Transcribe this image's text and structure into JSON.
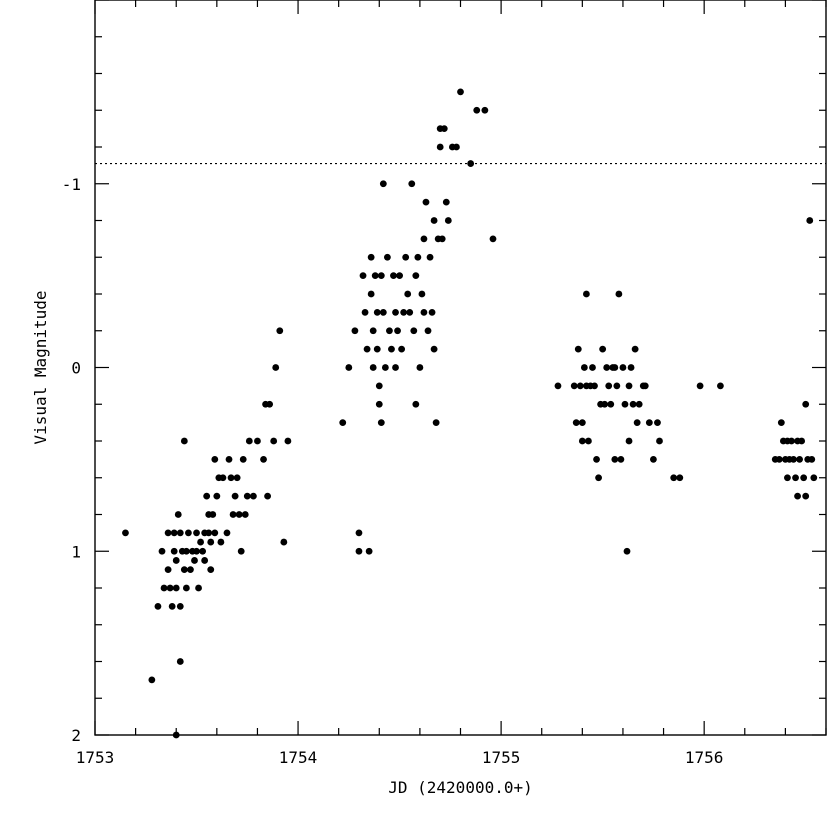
{
  "chart_data": {
    "type": "scatter",
    "title": "",
    "xlabel": "JD (2420000.0+)",
    "ylabel": "Visual Magnitude",
    "xlim": [
      1753,
      1756.6
    ],
    "ylim": [
      2,
      -2
    ],
    "y_inverted": true,
    "x_ticks": [
      1753,
      1754,
      1755,
      1756
    ],
    "x_tick_labels": [
      "1753",
      "1754",
      "1755",
      "1756"
    ],
    "y_ticks": [
      -1,
      0,
      1,
      2
    ],
    "y_tick_labels": [
      "-1",
      "0",
      "1",
      "2"
    ],
    "grid": false,
    "reference_line": {
      "y": -1.11,
      "style": "dotted"
    },
    "marker_color": "#000000",
    "points": [
      [
        1753.15,
        0.9
      ],
      [
        1753.28,
        1.7
      ],
      [
        1753.31,
        1.3
      ],
      [
        1753.33,
        1.0
      ],
      [
        1753.34,
        1.2
      ],
      [
        1753.36,
        1.1
      ],
      [
        1753.36,
        0.9
      ],
      [
        1753.37,
        1.2
      ],
      [
        1753.38,
        1.3
      ],
      [
        1753.39,
        1.0
      ],
      [
        1753.39,
        0.9
      ],
      [
        1753.4,
        2.0
      ],
      [
        1753.4,
        1.2
      ],
      [
        1753.4,
        1.05
      ],
      [
        1753.41,
        0.8
      ],
      [
        1753.42,
        1.6
      ],
      [
        1753.42,
        1.3
      ],
      [
        1753.42,
        0.9
      ],
      [
        1753.43,
        1.0
      ],
      [
        1753.44,
        0.4
      ],
      [
        1753.44,
        1.1
      ],
      [
        1753.45,
        1.2
      ],
      [
        1753.45,
        1.0
      ],
      [
        1753.46,
        0.9
      ],
      [
        1753.47,
        1.1
      ],
      [
        1753.48,
        1.0
      ],
      [
        1753.49,
        1.05
      ],
      [
        1753.5,
        1.0
      ],
      [
        1753.5,
        0.9
      ],
      [
        1753.51,
        1.2
      ],
      [
        1753.52,
        0.95
      ],
      [
        1753.53,
        1.0
      ],
      [
        1753.54,
        1.05
      ],
      [
        1753.54,
        0.9
      ],
      [
        1753.55,
        0.7
      ],
      [
        1753.56,
        0.8
      ],
      [
        1753.56,
        0.9
      ],
      [
        1753.57,
        1.1
      ],
      [
        1753.57,
        0.95
      ],
      [
        1753.58,
        0.8
      ],
      [
        1753.59,
        0.9
      ],
      [
        1753.59,
        0.5
      ],
      [
        1753.6,
        0.7
      ],
      [
        1753.61,
        0.6
      ],
      [
        1753.62,
        0.95
      ],
      [
        1753.63,
        0.6
      ],
      [
        1753.65,
        0.9
      ],
      [
        1753.66,
        0.5
      ],
      [
        1753.67,
        0.6
      ],
      [
        1753.68,
        0.8
      ],
      [
        1753.69,
        0.7
      ],
      [
        1753.7,
        0.6
      ],
      [
        1753.71,
        0.8
      ],
      [
        1753.72,
        1.0
      ],
      [
        1753.73,
        0.5
      ],
      [
        1753.74,
        0.8
      ],
      [
        1753.75,
        0.7
      ],
      [
        1753.76,
        0.4
      ],
      [
        1753.78,
        0.7
      ],
      [
        1753.8,
        0.4
      ],
      [
        1753.83,
        0.5
      ],
      [
        1753.84,
        0.2
      ],
      [
        1753.85,
        0.7
      ],
      [
        1753.86,
        0.2
      ],
      [
        1753.88,
        0.4
      ],
      [
        1753.89,
        0.0
      ],
      [
        1753.91,
        -0.2
      ],
      [
        1753.93,
        0.95
      ],
      [
        1753.95,
        0.4
      ],
      [
        1754.22,
        0.3
      ],
      [
        1754.25,
        0.0
      ],
      [
        1754.28,
        -0.2
      ],
      [
        1754.3,
        0.9
      ],
      [
        1754.3,
        1.0
      ],
      [
        1754.32,
        -0.5
      ],
      [
        1754.33,
        -0.3
      ],
      [
        1754.34,
        -0.1
      ],
      [
        1754.35,
        1.0
      ],
      [
        1754.36,
        -0.6
      ],
      [
        1754.36,
        -0.4
      ],
      [
        1754.37,
        -0.2
      ],
      [
        1754.37,
        0.0
      ],
      [
        1754.38,
        -0.5
      ],
      [
        1754.39,
        -0.3
      ],
      [
        1754.39,
        -0.1
      ],
      [
        1754.4,
        0.2
      ],
      [
        1754.4,
        0.1
      ],
      [
        1754.41,
        -0.5
      ],
      [
        1754.41,
        0.3
      ],
      [
        1754.42,
        -1.0
      ],
      [
        1754.42,
        -0.3
      ],
      [
        1754.43,
        0.0
      ],
      [
        1754.44,
        -0.6
      ],
      [
        1754.45,
        -0.2
      ],
      [
        1754.46,
        -0.1
      ],
      [
        1754.47,
        -0.5
      ],
      [
        1754.48,
        -0.3
      ],
      [
        1754.48,
        0.0
      ],
      [
        1754.49,
        -0.2
      ],
      [
        1754.5,
        -0.5
      ],
      [
        1754.51,
        -0.1
      ],
      [
        1754.52,
        -0.3
      ],
      [
        1754.53,
        -0.6
      ],
      [
        1754.54,
        -0.4
      ],
      [
        1754.55,
        -0.3
      ],
      [
        1754.56,
        -1.0
      ],
      [
        1754.57,
        -0.2
      ],
      [
        1754.58,
        -0.5
      ],
      [
        1754.58,
        0.2
      ],
      [
        1754.59,
        -0.6
      ],
      [
        1754.6,
        0.0
      ],
      [
        1754.61,
        -0.4
      ],
      [
        1754.62,
        -0.7
      ],
      [
        1754.62,
        -0.3
      ],
      [
        1754.63,
        -0.9
      ],
      [
        1754.64,
        -0.2
      ],
      [
        1754.65,
        -0.6
      ],
      [
        1754.66,
        -0.3
      ],
      [
        1754.67,
        -0.8
      ],
      [
        1754.67,
        -0.1
      ],
      [
        1754.68,
        0.3
      ],
      [
        1754.69,
        -0.7
      ],
      [
        1754.7,
        -1.3
      ],
      [
        1754.7,
        -1.2
      ],
      [
        1754.71,
        -0.7
      ],
      [
        1754.72,
        -1.3
      ],
      [
        1754.73,
        -0.9
      ],
      [
        1754.74,
        -0.8
      ],
      [
        1754.76,
        -1.2
      ],
      [
        1754.78,
        -1.2
      ],
      [
        1754.8,
        -1.5
      ],
      [
        1754.85,
        -1.11
      ],
      [
        1754.88,
        -1.4
      ],
      [
        1754.92,
        -1.4
      ],
      [
        1754.96,
        -0.7
      ],
      [
        1755.28,
        0.1
      ],
      [
        1755.36,
        0.1
      ],
      [
        1755.37,
        0.3
      ],
      [
        1755.38,
        -0.1
      ],
      [
        1755.39,
        0.1
      ],
      [
        1755.4,
        0.3
      ],
      [
        1755.4,
        0.4
      ],
      [
        1755.41,
        0.0
      ],
      [
        1755.42,
        -0.4
      ],
      [
        1755.42,
        0.1
      ],
      [
        1755.43,
        0.4
      ],
      [
        1755.44,
        0.1
      ],
      [
        1755.45,
        0.0
      ],
      [
        1755.46,
        0.1
      ],
      [
        1755.47,
        0.5
      ],
      [
        1755.48,
        0.6
      ],
      [
        1755.49,
        0.2
      ],
      [
        1755.5,
        -0.1
      ],
      [
        1755.51,
        0.2
      ],
      [
        1755.52,
        0.0
      ],
      [
        1755.53,
        0.1
      ],
      [
        1755.54,
        0.2
      ],
      [
        1755.55,
        0.0
      ],
      [
        1755.56,
        0.5
      ],
      [
        1755.56,
        0.0
      ],
      [
        1755.57,
        0.1
      ],
      [
        1755.58,
        -0.4
      ],
      [
        1755.59,
        0.5
      ],
      [
        1755.6,
        0.0
      ],
      [
        1755.61,
        0.2
      ],
      [
        1755.62,
        1.0
      ],
      [
        1755.63,
        0.4
      ],
      [
        1755.63,
        0.1
      ],
      [
        1755.64,
        0.0
      ],
      [
        1755.65,
        0.2
      ],
      [
        1755.66,
        -0.1
      ],
      [
        1755.67,
        0.3
      ],
      [
        1755.68,
        0.2
      ],
      [
        1755.7,
        0.1
      ],
      [
        1755.71,
        0.1
      ],
      [
        1755.73,
        0.3
      ],
      [
        1755.75,
        0.5
      ],
      [
        1755.77,
        0.3
      ],
      [
        1755.78,
        0.4
      ],
      [
        1755.85,
        0.6
      ],
      [
        1755.88,
        0.6
      ],
      [
        1755.98,
        0.1
      ],
      [
        1756.08,
        0.1
      ],
      [
        1756.35,
        0.5
      ],
      [
        1756.37,
        0.5
      ],
      [
        1756.38,
        0.3
      ],
      [
        1756.39,
        0.4
      ],
      [
        1756.4,
        0.5
      ],
      [
        1756.41,
        0.4
      ],
      [
        1756.41,
        0.6
      ],
      [
        1756.42,
        0.5
      ],
      [
        1756.43,
        0.4
      ],
      [
        1756.44,
        0.5
      ],
      [
        1756.45,
        0.6
      ],
      [
        1756.46,
        0.4
      ],
      [
        1756.46,
        0.7
      ],
      [
        1756.47,
        0.5
      ],
      [
        1756.48,
        0.4
      ],
      [
        1756.49,
        0.6
      ],
      [
        1756.5,
        0.2
      ],
      [
        1756.5,
        0.7
      ],
      [
        1756.51,
        0.5
      ],
      [
        1756.52,
        -0.8
      ],
      [
        1756.53,
        0.5
      ],
      [
        1756.54,
        0.6
      ]
    ]
  }
}
